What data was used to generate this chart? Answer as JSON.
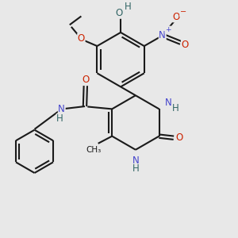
{
  "bg_color": "#e8e8e8",
  "bond_color": "#1a1a1a",
  "bond_lw": 1.5,
  "dbl_off": 0.055,
  "fs": 8.5,
  "fss": 7.5,
  "figsize": [
    3.0,
    3.0
  ],
  "dpi": 100,
  "xlim": [
    -1.0,
    5.5
  ],
  "ylim": [
    -3.5,
    3.5
  ],
  "colors": {
    "N": "#4444cc",
    "O": "#cc2200",
    "OH": "#336666",
    "H": "#336666",
    "C": "#1a1a1a",
    "Nplus": "#4444cc",
    "Ominus": "#cc2200"
  }
}
